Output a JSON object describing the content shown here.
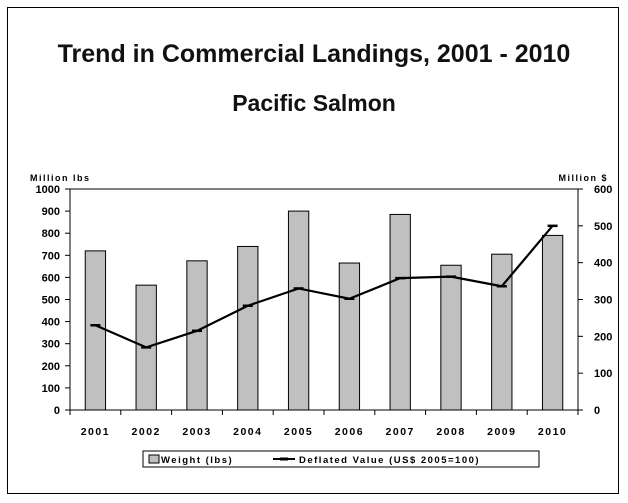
{
  "chart_data": {
    "type": "bar",
    "title": "Trend in Commercial Landings, 2001 - 2010",
    "subtitle": "Pacific Salmon",
    "categories": [
      "2001",
      "2002",
      "2003",
      "2004",
      "2005",
      "2006",
      "2007",
      "2008",
      "2009",
      "2010"
    ],
    "y_left": {
      "label": "Million lbs",
      "min": 0,
      "max": 1000,
      "ticks": [
        0,
        100,
        200,
        300,
        400,
        500,
        600,
        700,
        800,
        900,
        1000
      ]
    },
    "y_right": {
      "label": "Million $",
      "min": 0,
      "max": 600,
      "ticks": [
        0,
        100,
        200,
        300,
        400,
        500,
        600
      ]
    },
    "series": [
      {
        "name": "Weight (lbs)",
        "type": "bar",
        "axis": "left",
        "values": [
          720,
          565,
          675,
          740,
          900,
          665,
          885,
          655,
          705,
          790
        ]
      },
      {
        "name": "Deflated Value (US$ 2005=100)",
        "type": "line",
        "axis": "right",
        "values": [
          230,
          170,
          215,
          283,
          330,
          302,
          358,
          362,
          336,
          500
        ]
      }
    ],
    "legend_position": "bottom",
    "grid": false,
    "colors": {
      "bar_fill": "#c0c0c0",
      "bar_stroke": "#000000",
      "line": "#000000"
    }
  }
}
